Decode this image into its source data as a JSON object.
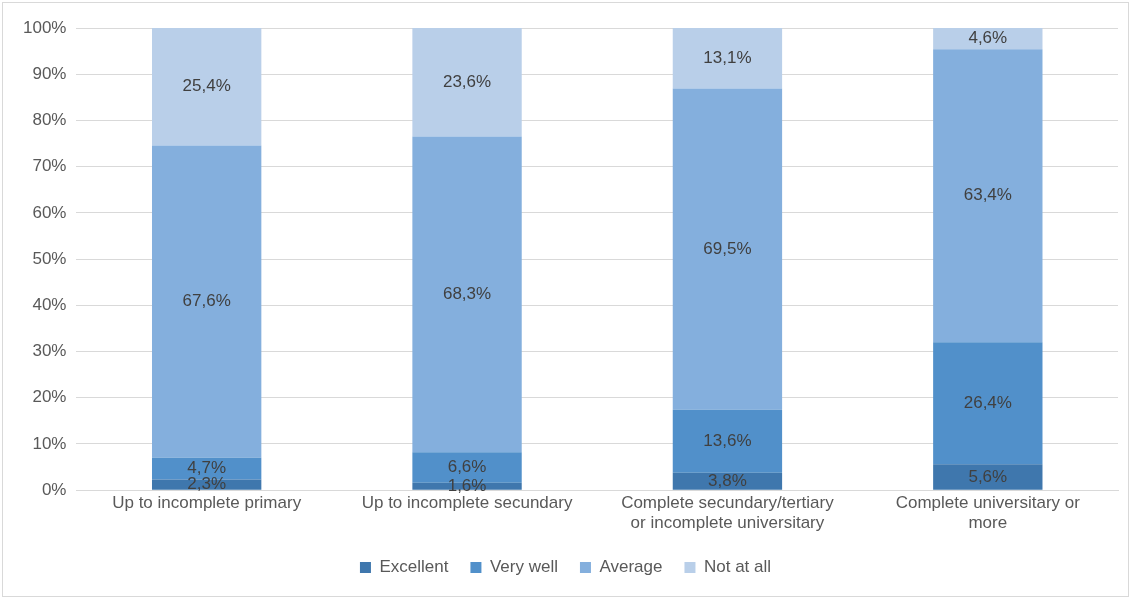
{
  "chart_data": {
    "type": "bar",
    "stacked": true,
    "categories": [
      "Up to incomplete primary",
      "Up to incomplete secundary",
      "Complete secundary/tertiary or incomplete universitary",
      "Complete universitary or more"
    ],
    "series": [
      {
        "name": "Excellent",
        "color": "#3f77ad",
        "values": [
          2.3,
          1.6,
          3.8,
          5.6
        ],
        "value_labels": [
          "2,3%",
          "1,6%",
          "3,8%",
          "5,6%"
        ]
      },
      {
        "name": "Very well",
        "color": "#5190ca",
        "values": [
          4.7,
          6.6,
          13.6,
          26.4
        ],
        "value_labels": [
          "4,7%",
          "6,6%",
          "13,6%",
          "26,4%"
        ]
      },
      {
        "name": "Average",
        "color": "#84afdd",
        "values": [
          67.6,
          68.3,
          69.5,
          63.4
        ],
        "value_labels": [
          "67,6%",
          "68,3%",
          "69,5%",
          "63,4%"
        ]
      },
      {
        "name": "Not at all",
        "color": "#b9cfe9",
        "values": [
          25.4,
          23.6,
          13.1,
          4.6
        ],
        "value_labels": [
          "25,4%",
          "23,6%",
          "13,1%",
          "4,6%"
        ]
      }
    ],
    "ylim": [
      0,
      100
    ],
    "yticks": [
      {
        "value": 0,
        "label": "0%"
      },
      {
        "value": 10,
        "label": "10%"
      },
      {
        "value": 20,
        "label": "20%"
      },
      {
        "value": 30,
        "label": "30%"
      },
      {
        "value": 40,
        "label": "40%"
      },
      {
        "value": 50,
        "label": "50%"
      },
      {
        "value": 60,
        "label": "60%"
      },
      {
        "value": 70,
        "label": "70%"
      },
      {
        "value": 80,
        "label": "80%"
      },
      {
        "value": 90,
        "label": "90%"
      },
      {
        "value": 100,
        "label": "100%"
      }
    ],
    "grid": "y",
    "legend": "bottom"
  }
}
